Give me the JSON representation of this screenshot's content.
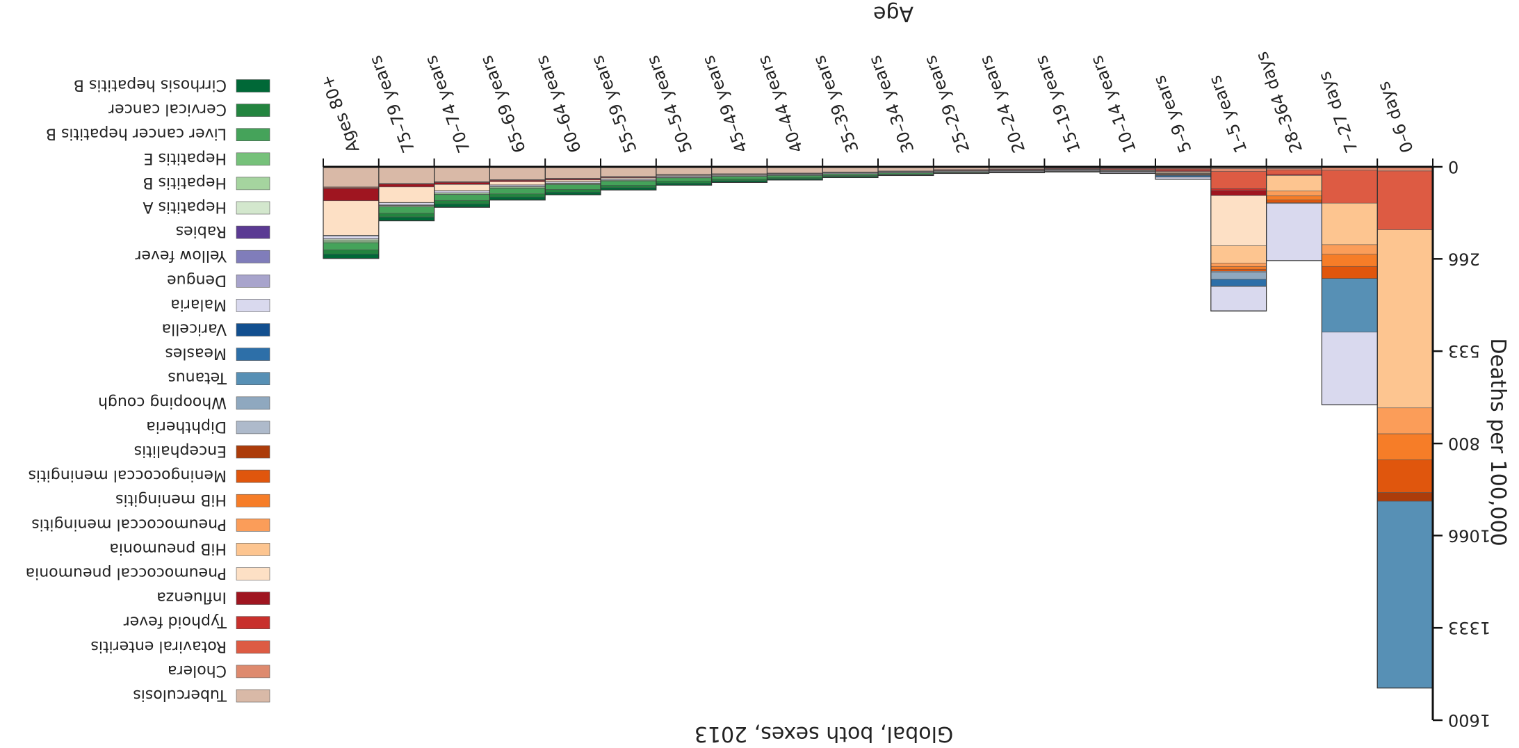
{
  "chart_data": {
    "type": "bar",
    "title": "Global, both sexes, 2013",
    "xlabel": "Age",
    "ylabel": "Deaths per 100,000",
    "ylim": [
      0,
      1600
    ],
    "yticks": [
      0,
      266,
      533,
      800,
      1066,
      1333,
      1600
    ],
    "stacked": true,
    "legend_position": "right",
    "categories": [
      "0–6 days",
      "7–27 days",
      "28–364 days",
      "1–5 years",
      "5–9 years",
      "10–14 years",
      "15–19 years",
      "20–24 years",
      "25–29 years",
      "30–34 years",
      "35–39 years",
      "40–44 years",
      "45–49 years",
      "50–54 years",
      "55–59 years",
      "60–64 years",
      "65–69 years",
      "70–74 years",
      "75–79 years",
      "Ages 80+"
    ],
    "series": [
      {
        "name": "Tuberculosis",
        "color": "#d9b9a7",
        "values": [
          0,
          0,
          5,
          5,
          3,
          3,
          4,
          6,
          8,
          12,
          15,
          18,
          20,
          22,
          28,
          33,
          37,
          43,
          48,
          58
        ]
      },
      {
        "name": "Cholera",
        "color": "#de8a6e",
        "values": [
          12,
          10,
          4,
          8,
          2,
          1,
          1,
          1,
          1,
          1,
          1,
          1,
          1,
          1,
          1,
          1,
          1,
          1,
          1,
          2
        ]
      },
      {
        "name": "Rotaviral enteritis",
        "color": "#dd5b43",
        "values": [
          170,
          95,
          12,
          50,
          3,
          1,
          0,
          0,
          0,
          0,
          0,
          0,
          0,
          0,
          0,
          0,
          0,
          0,
          0,
          1
        ]
      },
      {
        "name": "Typhoid fever",
        "color": "#c8302c",
        "values": [
          0,
          0,
          4,
          6,
          4,
          3,
          2,
          2,
          2,
          1,
          1,
          1,
          1,
          1,
          1,
          1,
          1,
          1,
          1,
          2
        ]
      },
      {
        "name": "Influenza",
        "color": "#9f1520",
        "values": [
          0,
          0,
          0,
          14,
          2,
          1,
          0,
          0,
          0,
          0,
          0,
          1,
          1,
          1,
          2,
          3,
          4,
          6,
          8,
          35
        ]
      },
      {
        "name": "Pneumococcal pneumonia",
        "color": "#fde0c5",
        "values": [
          0,
          0,
          0,
          145,
          3,
          2,
          1,
          1,
          1,
          1,
          1,
          1,
          2,
          2,
          3,
          5,
          9,
          18,
          45,
          100
        ]
      },
      {
        "name": "HiB pneumonia",
        "color": "#fdc590",
        "values": [
          515,
          120,
          45,
          50,
          2,
          1,
          0,
          0,
          0,
          0,
          0,
          0,
          0,
          0,
          0,
          0,
          0,
          0,
          0,
          0
        ]
      },
      {
        "name": "Pneumococcal meningitis",
        "color": "#fb9d59",
        "values": [
          75,
          28,
          14,
          10,
          1,
          1,
          1,
          1,
          0,
          0,
          0,
          0,
          0,
          0,
          0,
          1,
          1,
          1,
          1,
          1
        ]
      },
      {
        "name": "HiB meningitis",
        "color": "#f67d28",
        "values": [
          75,
          35,
          12,
          8,
          1,
          0,
          0,
          0,
          0,
          0,
          0,
          0,
          0,
          0,
          0,
          0,
          0,
          0,
          0,
          0
        ]
      },
      {
        "name": "Meningococcal meningitis",
        "color": "#e0560d",
        "values": [
          95,
          35,
          8,
          6,
          2,
          1,
          1,
          1,
          0,
          0,
          0,
          0,
          0,
          0,
          0,
          0,
          0,
          0,
          0,
          0
        ]
      },
      {
        "name": "Encephalitis",
        "color": "#ac3c0a",
        "values": [
          25,
          0,
          0,
          0,
          0,
          0,
          0,
          0,
          0,
          0,
          0,
          0,
          0,
          0,
          0,
          0,
          0,
          0,
          0,
          0
        ]
      },
      {
        "name": "Diphtheria",
        "color": "#aebacb",
        "values": [
          0,
          0,
          2,
          3,
          1,
          0,
          0,
          0,
          0,
          0,
          0,
          0,
          0,
          0,
          0,
          0,
          0,
          0,
          0,
          0
        ]
      },
      {
        "name": "Whooping cough",
        "color": "#8fa8bf",
        "values": [
          0,
          0,
          0,
          20,
          1,
          0,
          0,
          0,
          0,
          0,
          0,
          0,
          0,
          0,
          0,
          0,
          0,
          0,
          0,
          0
        ]
      },
      {
        "name": "Tetanus",
        "color": "#5790b5",
        "values": [
          540,
          155,
          0,
          0,
          0,
          0,
          0,
          0,
          0,
          0,
          0,
          0,
          0,
          0,
          0,
          0,
          0,
          0,
          0,
          0
        ]
      },
      {
        "name": "Measles",
        "color": "#2d6fa8",
        "values": [
          0,
          0,
          0,
          20,
          4,
          1,
          0,
          0,
          0,
          0,
          0,
          0,
          0,
          0,
          0,
          0,
          0,
          0,
          0,
          0
        ]
      },
      {
        "name": "Varicella",
        "color": "#124f8f",
        "values": [
          0,
          0,
          0,
          1,
          1,
          0,
          0,
          0,
          0,
          0,
          0,
          0,
          0,
          0,
          0,
          0,
          0,
          0,
          0,
          1
        ]
      },
      {
        "name": "Malaria",
        "color": "#d9d9ee",
        "values": [
          0,
          210,
          165,
          70,
          6,
          3,
          2,
          2,
          2,
          2,
          2,
          2,
          2,
          3,
          3,
          3,
          4,
          5,
          6,
          8
        ]
      },
      {
        "name": "Dengue",
        "color": "#a8a4cc",
        "values": [
          0,
          0,
          0,
          0,
          0,
          0,
          0,
          0,
          0,
          0,
          0,
          0,
          0,
          0,
          0,
          0,
          0,
          0,
          1,
          1
        ]
      },
      {
        "name": "Yellow fever",
        "color": "#807dba",
        "values": [
          0,
          0,
          0,
          0,
          0,
          0,
          0,
          0,
          0,
          0,
          0,
          0,
          0,
          0,
          0,
          0,
          0,
          0,
          0,
          0
        ]
      },
      {
        "name": "Rabies",
        "color": "#5b3a93",
        "values": [
          0,
          0,
          0,
          0,
          0,
          0,
          0,
          0,
          0,
          0,
          0,
          0,
          0,
          0,
          0,
          0,
          0,
          0,
          0,
          0
        ]
      },
      {
        "name": "Hepatitis A",
        "color": "#d3e7cd",
        "values": [
          0,
          0,
          0,
          1,
          0,
          0,
          0,
          0,
          0,
          0,
          0,
          0,
          0,
          0,
          0,
          1,
          1,
          1,
          1,
          3
        ]
      },
      {
        "name": "Hepatitis B",
        "color": "#a5d49f",
        "values": [
          0,
          0,
          0,
          0,
          0,
          0,
          1,
          1,
          1,
          1,
          1,
          1,
          1,
          1,
          2,
          2,
          3,
          3,
          3,
          5
        ]
      },
      {
        "name": "Hepatitis E",
        "color": "#76c17a",
        "values": [
          0,
          0,
          0,
          0,
          0,
          0,
          0,
          0,
          0,
          0,
          0,
          0,
          0,
          1,
          1,
          1,
          1,
          1,
          1,
          3
        ]
      },
      {
        "name": "Liver cancer hepatitis B",
        "color": "#45a35a",
        "values": [
          0,
          0,
          0,
          0,
          0,
          1,
          1,
          1,
          2,
          3,
          4,
          5,
          7,
          9,
          12,
          14,
          16,
          17,
          18,
          20
        ]
      },
      {
        "name": "Cervical cancer",
        "color": "#23843f",
        "values": [
          0,
          0,
          0,
          0,
          0,
          0,
          0,
          0,
          1,
          2,
          3,
          4,
          5,
          6,
          7,
          8,
          9,
          10,
          11,
          12
        ]
      },
      {
        "name": "Cirrhosis hepatitis B",
        "color": "#006837",
        "values": [
          0,
          0,
          0,
          0,
          0,
          0,
          1,
          1,
          1,
          2,
          3,
          4,
          5,
          6,
          7,
          8,
          9,
          10,
          11,
          13
        ]
      }
    ]
  }
}
